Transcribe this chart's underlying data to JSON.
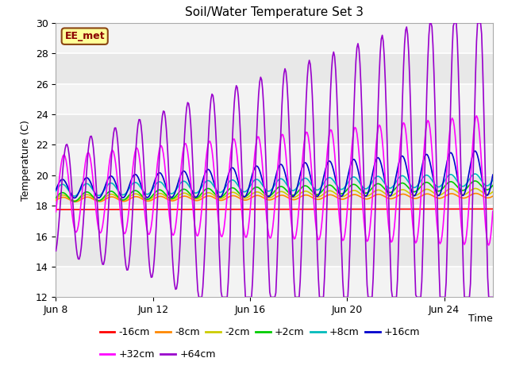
{
  "title": "Soil/Water Temperature Set 3",
  "ylabel": "Temperature (C)",
  "xlabel": "Time",
  "ylim": [
    12,
    30
  ],
  "yticks": [
    12,
    14,
    16,
    18,
    20,
    22,
    24,
    26,
    28,
    30
  ],
  "plot_bg_color": "#e8e8e8",
  "annotation_text": "EE_met",
  "annotation_bg": "#ffff99",
  "annotation_border": "#8B4513",
  "series": {
    "-16cm": {
      "color": "#ff0000",
      "lw": 1.2
    },
    "-8cm": {
      "color": "#ff8800",
      "lw": 1.2
    },
    "-2cm": {
      "color": "#cccc00",
      "lw": 1.2
    },
    "+2cm": {
      "color": "#00cc00",
      "lw": 1.2
    },
    "+8cm": {
      "color": "#00bbbb",
      "lw": 1.2
    },
    "+16cm": {
      "color": "#0000cc",
      "lw": 1.2
    },
    "+32cm": {
      "color": "#ff00ff",
      "lw": 1.2
    },
    "+64cm": {
      "color": "#9900cc",
      "lw": 1.2
    }
  },
  "legend_order": [
    "-16cm",
    "-8cm",
    "-2cm",
    "+2cm",
    "+8cm",
    "+16cm",
    "+32cm",
    "+64cm"
  ],
  "xtick_labels": [
    "Jun 8",
    "Jun 12",
    "Jun 16",
    "Jun 20",
    "Jun 24"
  ],
  "xtick_days": [
    0,
    4,
    8,
    12,
    16
  ],
  "total_days": 18,
  "n_points": 432
}
